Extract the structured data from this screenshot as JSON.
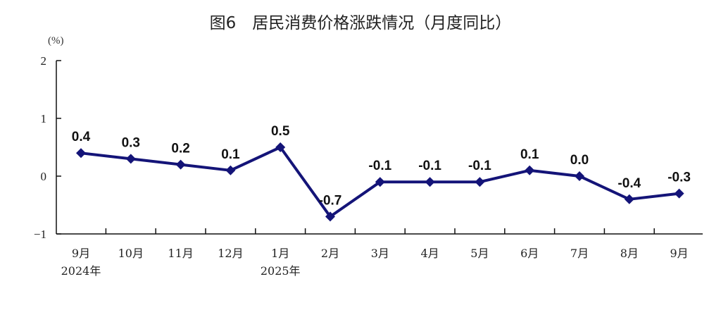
{
  "chart_data": {
    "type": "line",
    "title": "图6　居民消费价格涨跌情况（月度同比）",
    "unit": "(%)",
    "ylim": [
      -1,
      2
    ],
    "yticks": [
      "2",
      "1",
      "0",
      "−1"
    ],
    "categories": [
      "9月",
      "10月",
      "11月",
      "12月",
      "1月",
      "2月",
      "3月",
      "4月",
      "5月",
      "6月",
      "7月",
      "8月",
      "9月"
    ],
    "year_labels": [
      "2024年",
      "",
      "",
      "",
      "2025年",
      "",
      "",
      "",
      "",
      "",
      "",
      "",
      ""
    ],
    "series": [
      {
        "values": [
          0.4,
          0.3,
          0.2,
          0.1,
          0.5,
          -0.7,
          -0.1,
          -0.1,
          -0.1,
          0.1,
          0.0,
          -0.4,
          -0.3
        ],
        "labels": [
          "0.4",
          "0.3",
          "0.2",
          "0.1",
          "0.5",
          "-0.7",
          "-0.1",
          "-0.1",
          "-0.1",
          "0.1",
          "0.0",
          "-0.4",
          "-0.3"
        ]
      }
    ],
    "line_color": "#141478",
    "axis_color": "#111111",
    "grid": false,
    "legend": "none"
  }
}
